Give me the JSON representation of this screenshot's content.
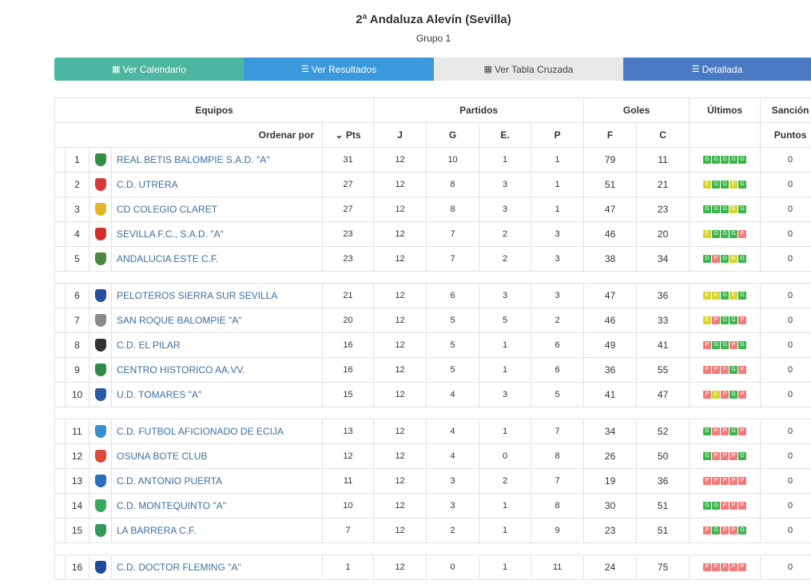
{
  "header": {
    "title": "2ª Andaluza Alevín (Sevilla)",
    "subtitle": "Grupo 1"
  },
  "tabs": [
    {
      "icon": "▦",
      "label": "Ver Calendario"
    },
    {
      "icon": "☰",
      "label": "Ver Resultados"
    },
    {
      "icon": "▦",
      "label": "Ver Tabla Cruzada"
    },
    {
      "icon": "☰",
      "label": "Detallada"
    }
  ],
  "table": {
    "groups": {
      "equipos": "Equipos",
      "partidos": "Partidos",
      "goles": "Goles",
      "ultimos": "Últimos",
      "sancion": "Sanción"
    },
    "order_label": "Ordenar por",
    "pts_label": "Pts",
    "cols": {
      "j": "J",
      "g": "G",
      "e": "E.",
      "p": "P",
      "f": "F",
      "c": "C",
      "puntos": "Puntos"
    },
    "rows": [
      {
        "rank": "1",
        "name": "REAL BETIS BALOMPIE S.A.D. \"A\"",
        "crest": "#2f8f45",
        "pts": "31",
        "j": "12",
        "g": "10",
        "e": "1",
        "p": "1",
        "f": "79",
        "c": "11",
        "last": [
          "G",
          "G",
          "G",
          "G",
          "G"
        ],
        "sancion": "0"
      },
      {
        "rank": "2",
        "name": "C.D. UTRERA",
        "crest": "#d83a3a",
        "pts": "27",
        "j": "12",
        "g": "8",
        "e": "3",
        "p": "1",
        "f": "51",
        "c": "21",
        "last": [
          "E",
          "G",
          "G",
          "E",
          "G"
        ],
        "sancion": "0"
      },
      {
        "rank": "3",
        "name": "CD COLEGIO CLARET",
        "crest": "#e6b52a",
        "pts": "27",
        "j": "12",
        "g": "8",
        "e": "3",
        "p": "1",
        "f": "47",
        "c": "23",
        "last": [
          "G",
          "G",
          "G",
          "E",
          "G"
        ],
        "sancion": "0"
      },
      {
        "rank": "4",
        "name": "SEVILLA F.C., S.A.D. \"A\"",
        "crest": "#d0312d",
        "pts": "23",
        "j": "12",
        "g": "7",
        "e": "2",
        "p": "3",
        "f": "46",
        "c": "20",
        "last": [
          "E",
          "G",
          "G",
          "G",
          "P"
        ],
        "sancion": "0"
      },
      {
        "rank": "5",
        "name": "ANDALUCIA ESTE C.F.",
        "crest": "#4a8a3c",
        "pts": "23",
        "j": "12",
        "g": "7",
        "e": "2",
        "p": "3",
        "f": "38",
        "c": "34",
        "last": [
          "G",
          "P",
          "G",
          "E",
          "G"
        ],
        "sancion": "0"
      },
      {
        "rank": "6",
        "name": "PELOTEROS SIERRA SUR SEVILLA",
        "crest": "#2a4fa0",
        "pts": "21",
        "j": "12",
        "g": "6",
        "e": "3",
        "p": "3",
        "f": "47",
        "c": "36",
        "last": [
          "E",
          "E",
          "G",
          "E",
          "G"
        ],
        "sancion": "0"
      },
      {
        "rank": "7",
        "name": "SAN ROQUE BALOMPIE \"A\"",
        "crest": "#8a8a8a",
        "pts": "20",
        "j": "12",
        "g": "5",
        "e": "5",
        "p": "2",
        "f": "46",
        "c": "33",
        "last": [
          "E",
          "P",
          "G",
          "G",
          "P"
        ],
        "sancion": "0"
      },
      {
        "rank": "8",
        "name": "C.D. EL PILAR",
        "crest": "#333333",
        "pts": "16",
        "j": "12",
        "g": "5",
        "e": "1",
        "p": "6",
        "f": "49",
        "c": "41",
        "last": [
          "P",
          "G",
          "G",
          "P",
          "G"
        ],
        "sancion": "0"
      },
      {
        "rank": "9",
        "name": "CENTRO HISTORICO AA.VV.",
        "crest": "#2e8b4a",
        "pts": "16",
        "j": "12",
        "g": "5",
        "e": "1",
        "p": "6",
        "f": "36",
        "c": "55",
        "last": [
          "P",
          "P",
          "P",
          "G",
          "P"
        ],
        "sancion": "0"
      },
      {
        "rank": "10",
        "name": "U.D. TOMARES \"A\"",
        "crest": "#2d5aa8",
        "pts": "15",
        "j": "12",
        "g": "4",
        "e": "3",
        "p": "5",
        "f": "41",
        "c": "47",
        "last": [
          "P",
          "E",
          "P",
          "G",
          "P"
        ],
        "sancion": "0"
      },
      {
        "rank": "11",
        "name": "C.D. FUTBOL AFICIONADO DE ECIJA",
        "crest": "#3a8fd0",
        "pts": "13",
        "j": "12",
        "g": "4",
        "e": "1",
        "p": "7",
        "f": "34",
        "c": "52",
        "last": [
          "G",
          "P",
          "P",
          "G",
          "P"
        ],
        "sancion": "0"
      },
      {
        "rank": "12",
        "name": "OSUNA BOTE CLUB",
        "crest": "#d94a3a",
        "pts": "12",
        "j": "12",
        "g": "4",
        "e": "0",
        "p": "8",
        "f": "26",
        "c": "50",
        "last": [
          "G",
          "P",
          "P",
          "P",
          "G"
        ],
        "sancion": "0"
      },
      {
        "rank": "13",
        "name": "C.D. ANTONIO PUERTA",
        "crest": "#2a70c0",
        "pts": "11",
        "j": "12",
        "g": "3",
        "e": "2",
        "p": "7",
        "f": "19",
        "c": "36",
        "last": [
          "P",
          "P",
          "P",
          "P",
          "P"
        ],
        "sancion": "0"
      },
      {
        "rank": "14",
        "name": "C.D. MONTEQUINTO \"A\"",
        "crest": "#3aa860",
        "pts": "10",
        "j": "12",
        "g": "3",
        "e": "1",
        "p": "8",
        "f": "30",
        "c": "51",
        "last": [
          "G",
          "G",
          "P",
          "P",
          "P"
        ],
        "sancion": "0"
      },
      {
        "rank": "15",
        "name": "LA BARRERA C.F.",
        "crest": "#2f9a5a",
        "pts": "7",
        "j": "12",
        "g": "2",
        "e": "1",
        "p": "9",
        "f": "23",
        "c": "51",
        "last": [
          "P",
          "G",
          "P",
          "P",
          "G"
        ],
        "sancion": "0"
      },
      {
        "rank": "16",
        "name": "C.D. DOCTOR FLEMING \"A\"",
        "crest": "#1e4c9a",
        "pts": "1",
        "j": "12",
        "g": "0",
        "e": "1",
        "p": "11",
        "f": "24",
        "c": "75",
        "last": [
          "P",
          "P",
          "P",
          "P",
          "P"
        ],
        "sancion": "0"
      }
    ]
  }
}
